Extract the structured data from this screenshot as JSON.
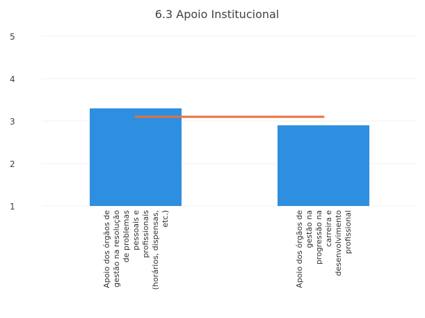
{
  "chart_data": {
    "type": "bar",
    "title": "6.3 Apoio Institucional",
    "categories": [
      [
        "Apoio dos órgãos de",
        "gestão na resolução",
        "de problemas",
        "pessoais e",
        "profissionais",
        "(horários, dispensas,",
        "etc.)"
      ],
      [
        "Apoio dos órgãos de",
        "gestão na",
        "progressão na",
        "carreira e",
        "desenvolvimento",
        "profissional"
      ]
    ],
    "series": [
      {
        "type": "bar",
        "values": [
          3.3,
          2.9
        ]
      },
      {
        "type": "line",
        "values": [
          3.1,
          3.1
        ]
      }
    ],
    "ylim": [
      1,
      5
    ],
    "yticks": [
      1,
      2,
      3,
      4,
      5
    ],
    "grid": true,
    "colors": {
      "bar": "#2e8fe0",
      "line": "#e8703a",
      "grid": "#f0f0f0"
    }
  }
}
